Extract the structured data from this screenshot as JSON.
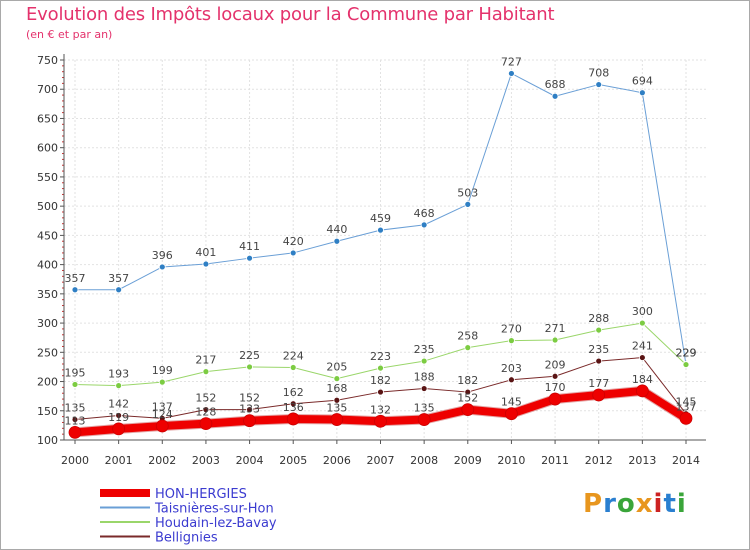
{
  "title": "Evolution des Impôts locaux pour la Commune par Habitant",
  "subtitle": "(en € et par an)",
  "logo": {
    "text": "Proxiti",
    "colors": [
      "#e8961e",
      "#2a7fd0",
      "#3aa53a",
      "#e8961e",
      "#cc2222",
      "#2a7fd0",
      "#3aa53a"
    ]
  },
  "chart_data": {
    "type": "line",
    "title": "Evolution des Impôts locaux pour la Commune par Habitant",
    "subtitle": "(en € et par an)",
    "xlabel": "",
    "ylabel": "",
    "x": [
      "2000",
      "2001",
      "2002",
      "2003",
      "2004",
      "2005",
      "2006",
      "2007",
      "2008",
      "2009",
      "2010",
      "2011",
      "2012",
      "2013",
      "2014"
    ],
    "ylim": [
      100,
      750
    ],
    "yticks": [
      100,
      150,
      200,
      250,
      300,
      350,
      400,
      450,
      500,
      550,
      600,
      650,
      700,
      750
    ],
    "grid": true,
    "legend_position": "bottom-left",
    "series": [
      {
        "name": "HON-HERGIES",
        "color": "#ee0000",
        "marker": "#ee0000",
        "width": 8,
        "values": [
          113,
          119,
          124,
          128,
          133,
          136,
          135,
          132,
          135,
          152,
          145,
          170,
          177,
          184,
          137
        ],
        "labels": [
          "113",
          "119",
          "124",
          "128",
          "133",
          "136",
          "135",
          "132",
          "135",
          "152",
          "145",
          "170",
          "177",
          "184",
          "137"
        ]
      },
      {
        "name": "Taisnières-sur-Hon",
        "color": "#6a9fd6",
        "marker": "#2f7fc4",
        "width": 1,
        "values": [
          357,
          357,
          396,
          401,
          411,
          420,
          440,
          459,
          468,
          503,
          727,
          688,
          708,
          694,
          229
        ],
        "labels": [
          "357",
          "357",
          "396",
          "401",
          "411",
          "420",
          "440",
          "459",
          "468",
          "503",
          "727",
          "688",
          "708",
          "694",
          "229"
        ]
      },
      {
        "name": "Houdain-lez-Bavay",
        "color": "#9ad66a",
        "marker": "#7ccc42",
        "width": 1,
        "values": [
          195,
          193,
          199,
          217,
          225,
          224,
          205,
          223,
          235,
          258,
          270,
          271,
          288,
          300,
          229
        ],
        "labels": [
          "195",
          "193",
          "199",
          "217",
          "225",
          "224",
          "205",
          "223",
          "235",
          "258",
          "270",
          "271",
          "288",
          "300",
          "229"
        ]
      },
      {
        "name": "Bellignies",
        "color": "#7a2a2a",
        "marker": "#5a1414",
        "width": 1,
        "values": [
          135,
          142,
          137,
          152,
          152,
          162,
          168,
          182,
          188,
          182,
          203,
          209,
          235,
          241,
          145
        ],
        "labels": [
          "135",
          "142",
          "137",
          "152",
          "152",
          "162",
          "168",
          "182",
          "188",
          "182",
          "203",
          "209",
          "235",
          "241",
          "145"
        ]
      }
    ]
  }
}
